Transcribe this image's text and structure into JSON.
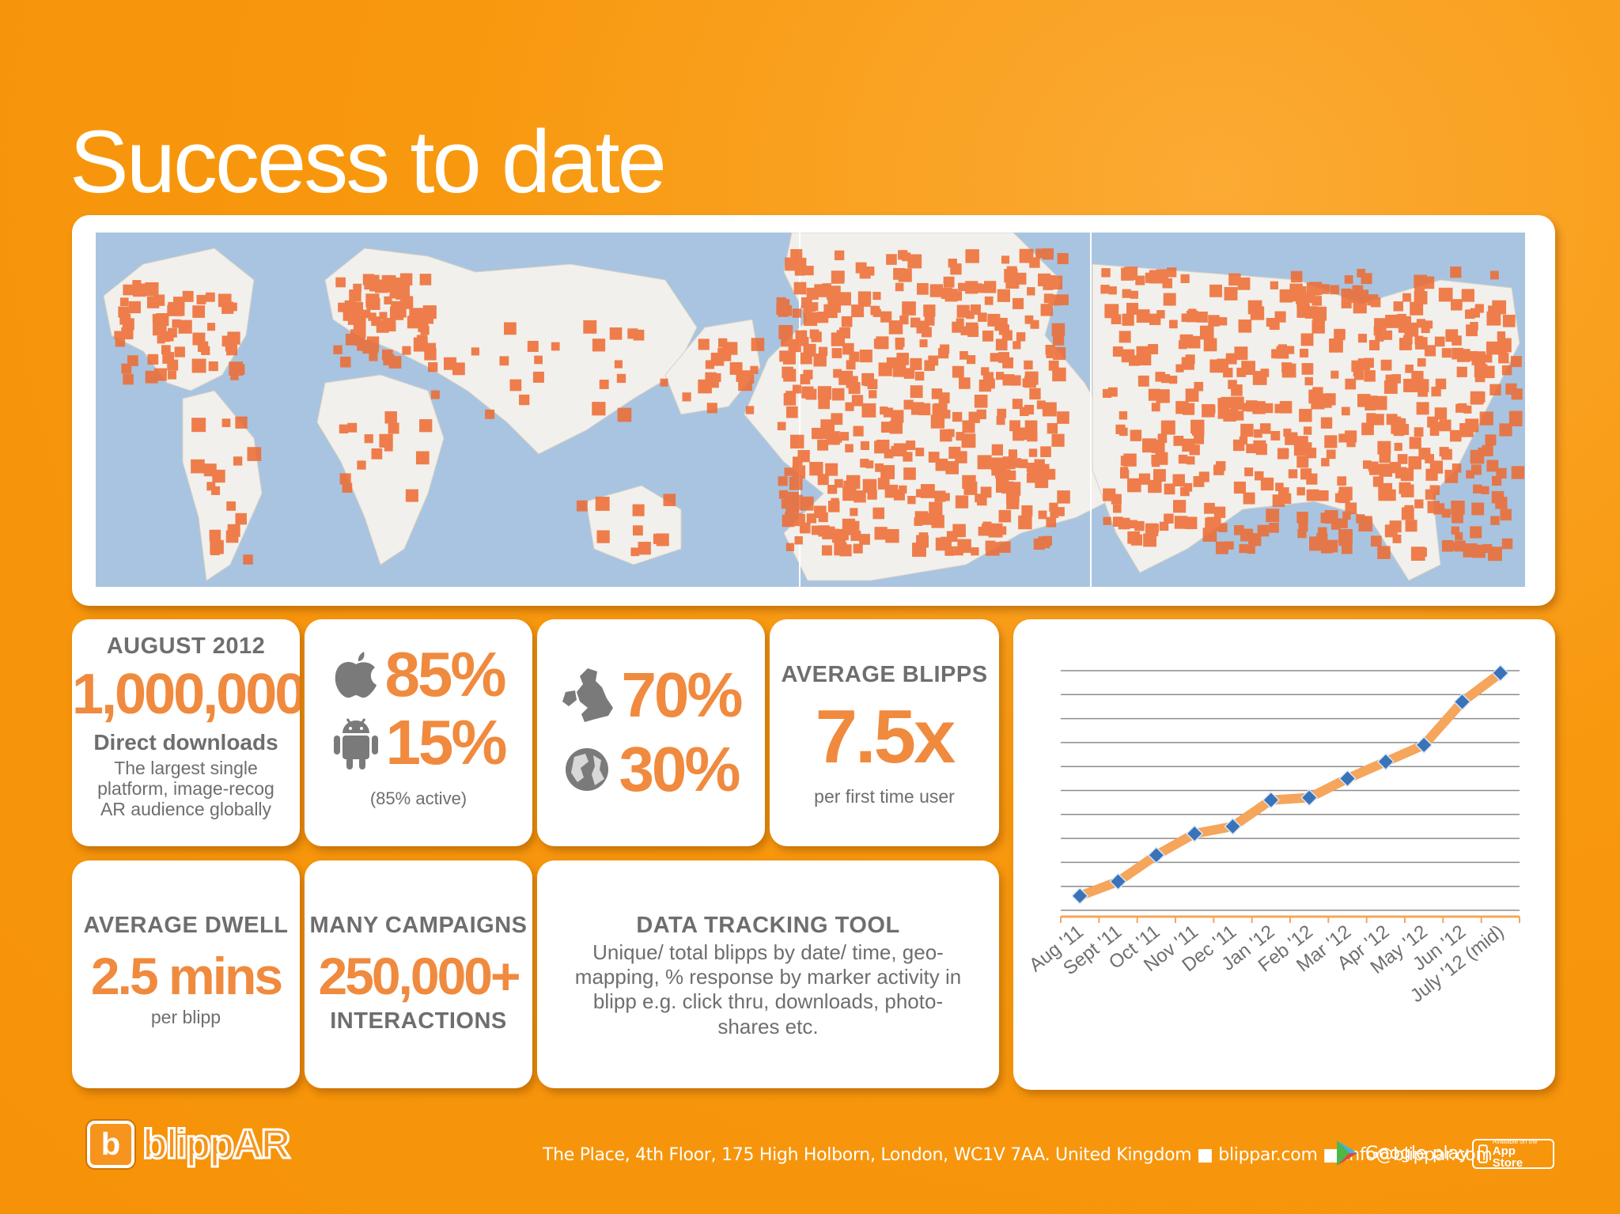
{
  "title": "Success to date",
  "colors": {
    "background": "#f8980e",
    "accent": "#f08a3e",
    "map_dot": "#ee6a30",
    "map_water": "#a9c4e0",
    "map_land": "#f2f0ec"
  },
  "map_panel": {
    "icon": "world-usage-heatmap"
  },
  "stats": {
    "downloads": {
      "heading": "AUGUST 2012",
      "value": "1,000,000",
      "subheading": "Direct downloads",
      "lines": [
        "The largest single",
        "platform, image-recog",
        "AR audience globally"
      ]
    },
    "platforms": {
      "apple_icon": "apple-icon",
      "apple_value": "85%",
      "android_icon": "android-icon",
      "android_value": "15%",
      "note": "(85% active)"
    },
    "regions": {
      "uk_icon": "uk-map-icon",
      "uk_value": "70%",
      "globe_icon": "globe-icon",
      "world_value": "30%"
    },
    "blipps": {
      "heading": "AVERAGE BLIPPS",
      "value": "7.5x",
      "sub": "per first time user"
    },
    "dwell": {
      "heading": "AVERAGE DWELL",
      "value": "2.5 mins",
      "sub": "per blipp"
    },
    "campaigns": {
      "heading": "MANY CAMPAIGNS",
      "value": "250,000+",
      "sub": "INTERACTIONS"
    },
    "tracking": {
      "heading": "DATA TRACKING TOOL",
      "lines": [
        "Unique/ total blipps by date/ time, geo-",
        "mapping, % response by marker activity in",
        "blipp e.g. click thru, downloads, photo-",
        "shares etc."
      ]
    }
  },
  "chart_data": {
    "type": "line",
    "categories": [
      "Aug '11",
      "Sept '11",
      "Oct '11",
      "Nov '11",
      "Dec '11",
      "Jan '12",
      "Feb '12",
      "Mar '12",
      "Apr '12",
      "May '12",
      "Jun '12",
      "July '12 (mid)"
    ],
    "values": [
      0.6,
      1.2,
      2.3,
      3.2,
      3.5,
      4.6,
      4.7,
      5.5,
      6.2,
      6.9,
      8.7,
      9.9
    ],
    "ylim": [
      0,
      10
    ],
    "grid": true,
    "legend": "none",
    "line_color": "#f5a55c",
    "marker_color": "#3a73b8"
  },
  "footer": {
    "logo_letter": "b",
    "logo_text": "blippAR",
    "address": "The Place, 4th Floor, 175 High Holborn, London, WC1V 7AA. United Kingdom ■ blippar.com ■ info@blippar.com",
    "google_play": "Google play",
    "app_store_top": "Available on the",
    "app_store": "App Store"
  }
}
